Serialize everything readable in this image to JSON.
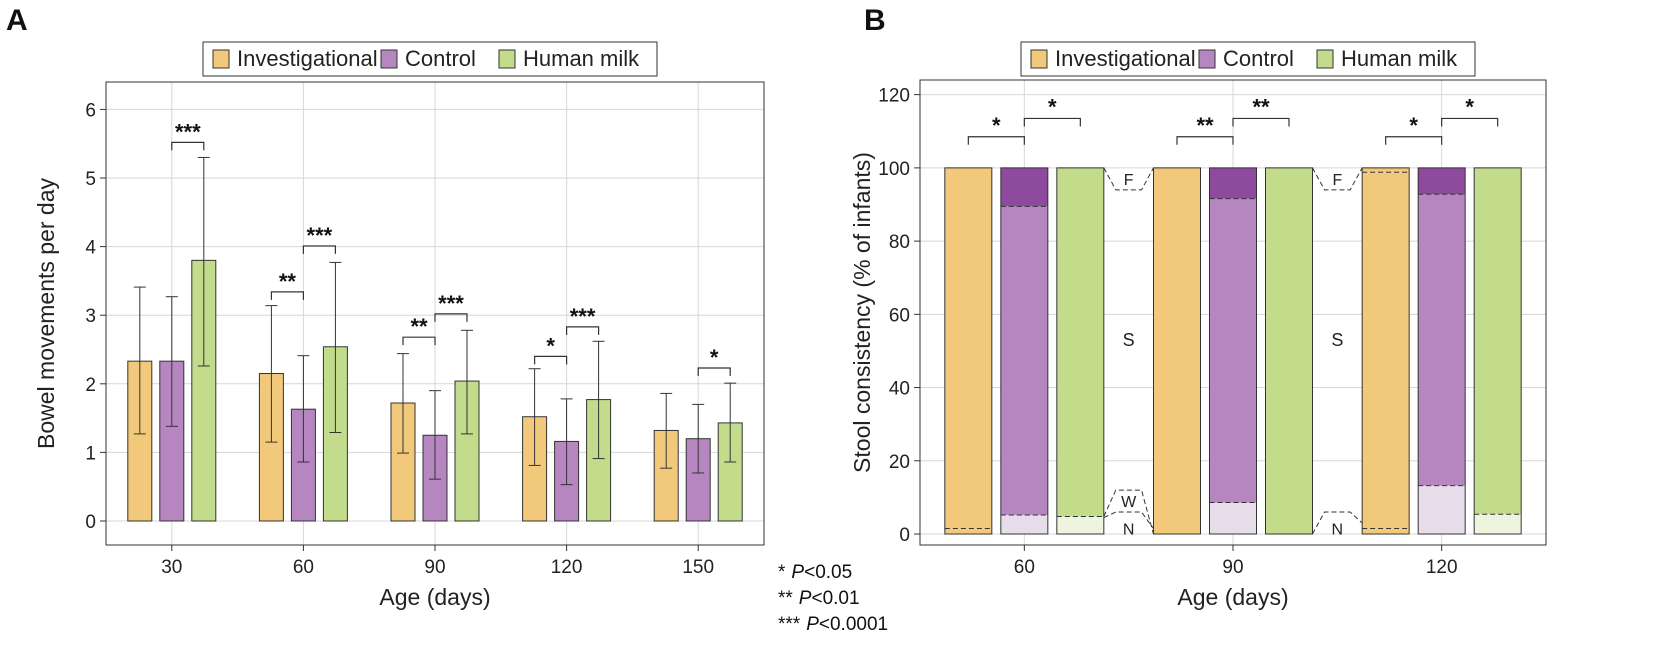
{
  "colors": {
    "investigational": "#f2c97a",
    "control": "#b586c0",
    "human_milk": "#c2dc8b",
    "control_firm": "#8e4a9c",
    "control_watery": "#e6dcea",
    "human_milk_watery": "#eef5de",
    "grid": "#d7d7d7"
  },
  "legend": [
    "Investigational",
    "Control",
    "Human milk"
  ],
  "footnotes": [
    {
      "stars": "*",
      "p": "P",
      "cmp": "<0.05"
    },
    {
      "stars": "**",
      "p": "P",
      "cmp": "<0.01"
    },
    {
      "stars": "***",
      "p": "P",
      "cmp": "<0.0001"
    }
  ],
  "chart_data": [
    {
      "panel": "A",
      "type": "bar",
      "title": "",
      "xlabel": "Age (days)",
      "ylabel": "Bowel movements per day",
      "categories": [
        "30",
        "60",
        "90",
        "120",
        "150"
      ],
      "ylim": [
        0,
        6.3
      ],
      "yticks": [
        "0",
        "1",
        "2",
        "3",
        "4",
        "5",
        "6"
      ],
      "grid": true,
      "legend_position": "top-center",
      "series": [
        {
          "name": "Investigational",
          "values": [
            2.33,
            2.15,
            1.72,
            1.52,
            1.32
          ],
          "error_upper": [
            3.41,
            3.14,
            2.44,
            2.22,
            1.86
          ],
          "error_lower": [
            1.27,
            1.15,
            0.99,
            0.81,
            0.77
          ]
        },
        {
          "name": "Control",
          "values": [
            2.33,
            1.63,
            1.25,
            1.16,
            1.2
          ],
          "error_upper": [
            3.27,
            2.41,
            1.9,
            1.78,
            1.7
          ],
          "error_lower": [
            1.38,
            0.86,
            0.61,
            0.53,
            0.7
          ]
        },
        {
          "name": "Human milk",
          "values": [
            3.8,
            2.54,
            2.04,
            1.77,
            1.43
          ],
          "error_upper": [
            5.3,
            3.77,
            2.78,
            2.62,
            2.01
          ],
          "error_lower": [
            2.26,
            1.29,
            1.27,
            0.91,
            0.86
          ]
        }
      ],
      "significance": [
        {
          "category": "30",
          "from": 1,
          "to": 2,
          "label": "***",
          "y": 5.52
        },
        {
          "category": "60",
          "from": 0,
          "to": 1,
          "label": "**",
          "y": 3.34
        },
        {
          "category": "60",
          "from": 1,
          "to": 2,
          "label": "***",
          "y": 4.01
        },
        {
          "category": "90",
          "from": 0,
          "to": 1,
          "label": "**",
          "y": 2.68
        },
        {
          "category": "90",
          "from": 1,
          "to": 2,
          "label": "***",
          "y": 3.02
        },
        {
          "category": "120",
          "from": 0,
          "to": 1,
          "label": "*",
          "y": 2.4
        },
        {
          "category": "120",
          "from": 1,
          "to": 2,
          "label": "***",
          "y": 2.83
        },
        {
          "category": "150",
          "from": 1,
          "to": 2,
          "label": "*",
          "y": 2.23
        }
      ]
    },
    {
      "panel": "B",
      "type": "bar",
      "subtype": "stacked-100",
      "title": "",
      "xlabel": "Age (days)",
      "ylabel": "Stool consistency (% of infants)",
      "categories": [
        "60",
        "90",
        "120"
      ],
      "ylim": [
        -3,
        124
      ],
      "yticks": [
        "0",
        "20",
        "40",
        "60",
        "80",
        "100",
        "120"
      ],
      "grid": true,
      "legend_position": "top-center",
      "stack_order": [
        "Watery",
        "Soft",
        "Formed"
      ],
      "series": [
        {
          "name": "Investigational",
          "stacks": [
            {
              "watery": 1.5,
              "soft": 98.5,
              "formed": 0.0
            },
            {
              "watery": 0.0,
              "soft": 100.0,
              "formed": 0.0
            },
            {
              "watery": 1.5,
              "soft": 97.3,
              "formed": 1.2
            }
          ]
        },
        {
          "name": "Control",
          "stacks": [
            {
              "watery": 5.2,
              "soft": 84.3,
              "formed": 10.5
            },
            {
              "watery": 8.6,
              "soft": 83.0,
              "formed": 8.4
            },
            {
              "watery": 13.2,
              "soft": 79.6,
              "formed": 7.2
            }
          ]
        },
        {
          "name": "Human milk",
          "stacks": [
            {
              "watery": 4.8,
              "soft": 95.2,
              "formed": 0.0
            },
            {
              "watery": 0.0,
              "soft": 100.0,
              "formed": 0.0
            },
            {
              "watery": 5.4,
              "soft": 94.6,
              "formed": 0.0
            }
          ]
        }
      ],
      "connector_annotations": [
        {
          "after_category": "60",
          "labels": {
            "formed": "F",
            "soft": "S",
            "watery": "W",
            "none": "N"
          }
        },
        {
          "after_category": "90",
          "labels": {
            "formed": "F",
            "soft": "S",
            "watery": "",
            "none": "N"
          }
        }
      ],
      "significance": [
        {
          "category": "60",
          "from": 0,
          "to": 1,
          "label": "*",
          "y": 108.5
        },
        {
          "category": "60",
          "from": 1,
          "to": 2,
          "label": "*",
          "y": 113.5
        },
        {
          "category": "90",
          "from": 0,
          "to": 1,
          "label": "**",
          "y": 108.5
        },
        {
          "category": "90",
          "from": 1,
          "to": 2,
          "label": "**",
          "y": 113.5
        },
        {
          "category": "120",
          "from": 0,
          "to": 1,
          "label": "*",
          "y": 108.5
        },
        {
          "category": "120",
          "from": 1,
          "to": 2,
          "label": "*",
          "y": 113.5
        }
      ]
    }
  ]
}
